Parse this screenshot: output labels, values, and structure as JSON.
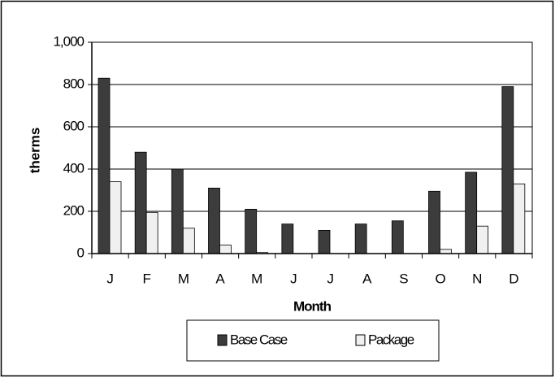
{
  "chart_data": {
    "type": "bar",
    "categories": [
      "J",
      "F",
      "M",
      "A",
      "M",
      "J",
      "J",
      "A",
      "S",
      "O",
      "N",
      "D"
    ],
    "series": [
      {
        "name": "Base Case",
        "color": "#3c3c3c",
        "values": [
          830,
          480,
          400,
          310,
          210,
          140,
          110,
          140,
          155,
          295,
          385,
          790
        ]
      },
      {
        "name": "Package",
        "color": "#f0f0f0",
        "values": [
          340,
          195,
          120,
          40,
          5,
          0,
          0,
          0,
          0,
          20,
          130,
          330
        ]
      }
    ],
    "ylim": [
      0,
      1000
    ],
    "yticks": [
      0,
      200,
      400,
      600,
      800,
      {
        "value": 1000,
        "label": "1,000"
      }
    ],
    "y_label": "therms",
    "x_label": "Month",
    "grid": true,
    "legend": "bottom"
  }
}
